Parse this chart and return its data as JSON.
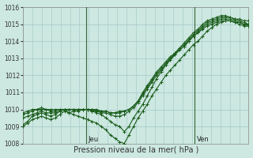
{
  "xlabel": "Pression niveau de la mer( hPa )",
  "bg_color": "#cce8e0",
  "grid_color": "#aacccc",
  "line_color": "#1a5c1a",
  "ylim": [
    1008,
    1016
  ],
  "yticks": [
    1008,
    1009,
    1010,
    1011,
    1012,
    1013,
    1014,
    1015,
    1016
  ],
  "xlim": [
    0,
    100
  ],
  "vlines": [
    28,
    76
  ],
  "vline_labels": [
    "Jeu",
    "Ven"
  ],
  "series": [
    [
      1009.1,
      1009.3,
      1009.6,
      1009.7,
      1009.8,
      1009.7,
      1009.6,
      1009.7,
      1009.9,
      1010.0,
      1009.8,
      1009.9,
      1009.9,
      1010.0,
      1010.0,
      1009.9,
      1009.8,
      1009.7,
      1009.5,
      1009.3,
      1009.1,
      1009.0,
      1008.7,
      1009.0,
      1009.5,
      1009.9,
      1010.3,
      1010.8,
      1011.3,
      1011.8,
      1012.2,
      1012.6,
      1013.0,
      1013.3,
      1013.6,
      1013.9,
      1014.2,
      1014.5,
      1014.7,
      1015.0,
      1015.2,
      1015.3,
      1015.4,
      1015.5,
      1015.5,
      1015.4,
      1015.3,
      1015.2,
      1015.1,
      1015.0
    ],
    [
      1009.0,
      1009.2,
      1009.4,
      1009.5,
      1009.6,
      1009.5,
      1009.4,
      1009.5,
      1009.7,
      1009.9,
      1009.8,
      1009.7,
      1009.6,
      1009.5,
      1009.4,
      1009.3,
      1009.2,
      1009.0,
      1008.8,
      1008.5,
      1008.3,
      1008.1,
      1008.0,
      1008.5,
      1009.0,
      1009.5,
      1009.9,
      1010.3,
      1010.8,
      1011.2,
      1011.6,
      1012.0,
      1012.3,
      1012.6,
      1012.9,
      1013.2,
      1013.5,
      1013.8,
      1014.0,
      1014.3,
      1014.6,
      1014.8,
      1015.0,
      1015.1,
      1015.2,
      1015.2,
      1015.1,
      1015.0,
      1014.9,
      1014.9
    ],
    [
      1009.5,
      1009.6,
      1009.7,
      1009.8,
      1009.9,
      1009.8,
      1009.8,
      1009.8,
      1009.9,
      1010.0,
      1010.0,
      1010.0,
      1010.0,
      1010.0,
      1010.0,
      1009.9,
      1009.9,
      1009.8,
      1009.8,
      1009.7,
      1009.6,
      1009.6,
      1009.7,
      1009.9,
      1010.1,
      1010.4,
      1010.8,
      1011.2,
      1011.6,
      1012.0,
      1012.3,
      1012.6,
      1012.9,
      1013.2,
      1013.5,
      1013.7,
      1014.0,
      1014.3,
      1014.5,
      1014.8,
      1015.0,
      1015.1,
      1015.2,
      1015.3,
      1015.3,
      1015.3,
      1015.2,
      1015.1,
      1015.0,
      1015.0
    ],
    [
      1009.7,
      1009.8,
      1009.9,
      1010.0,
      1010.0,
      1010.0,
      1009.9,
      1009.9,
      1010.0,
      1010.0,
      1010.0,
      1010.0,
      1010.0,
      1010.0,
      1010.0,
      1010.0,
      1010.0,
      1009.9,
      1009.9,
      1009.8,
      1009.8,
      1009.8,
      1009.9,
      1010.0,
      1010.2,
      1010.5,
      1010.9,
      1011.3,
      1011.7,
      1012.1,
      1012.4,
      1012.7,
      1013.0,
      1013.2,
      1013.5,
      1013.7,
      1014.0,
      1014.3,
      1014.5,
      1014.7,
      1014.9,
      1015.0,
      1015.1,
      1015.2,
      1015.2,
      1015.2,
      1015.1,
      1015.1,
      1015.0,
      1015.0
    ],
    [
      1009.8,
      1009.9,
      1010.0,
      1010.0,
      1010.1,
      1010.0,
      1010.0,
      1010.0,
      1010.0,
      1010.0,
      1010.0,
      1010.0,
      1010.0,
      1010.0,
      1010.0,
      1010.0,
      1009.9,
      1009.9,
      1009.9,
      1009.8,
      1009.8,
      1009.9,
      1009.9,
      1010.0,
      1010.2,
      1010.5,
      1011.0,
      1011.4,
      1011.8,
      1012.2,
      1012.5,
      1012.8,
      1013.1,
      1013.3,
      1013.6,
      1013.8,
      1014.1,
      1014.4,
      1014.6,
      1014.9,
      1015.1,
      1015.2,
      1015.3,
      1015.4,
      1015.4,
      1015.4,
      1015.3,
      1015.3,
      1015.2,
      1015.2
    ]
  ]
}
